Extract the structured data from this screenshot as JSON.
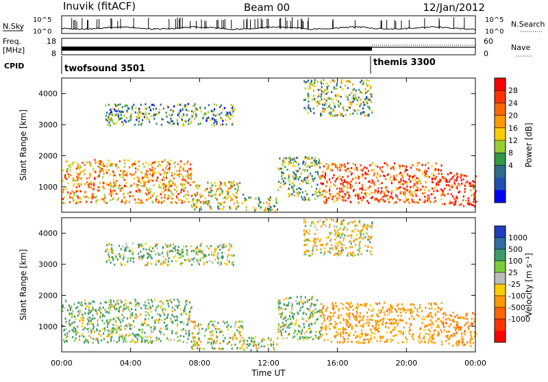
{
  "header": {
    "station": "Inuvik (fitACF)",
    "beam": "Beam 00",
    "date": "12/Jan/2012"
  },
  "noise_panel": {
    "left_label": "N.Sky",
    "right_label": "N.Search",
    "tick_top": "10^5",
    "tick_bottom": "10^0"
  },
  "freq_panel": {
    "left_label_1": "Freq.",
    "left_label_2": "[MHz]",
    "left_ticks": [
      "18",
      "8"
    ],
    "right_ticks": [
      "60",
      "0"
    ],
    "right_label": "Nave"
  },
  "cpid_panel": {
    "label": "CPID",
    "programs": [
      {
        "name": "twofsound 3501",
        "start_hour": 0
      },
      {
        "name": "themis 3300",
        "start_hour": 18
      }
    ]
  },
  "axes": {
    "ylabel": "Slant Range [km]",
    "xlabel": "Time UT",
    "y_ticks": [
      "1000",
      "2000",
      "3000",
      "4000"
    ],
    "x_ticks": [
      "00:00",
      "04:00",
      "08:00",
      "12:00",
      "16:00",
      "20:00",
      "00:00"
    ]
  },
  "power_colorbar": {
    "label": "Power [dB]",
    "ticks": [
      "28",
      "24",
      "20",
      "16",
      "12",
      "8",
      "4"
    ],
    "colors": [
      "#ff0000",
      "#ff3300",
      "#ff6600",
      "#ff9900",
      "#ffcc00",
      "#99cc33",
      "#339944",
      "#2d6e8a",
      "#1f4fb0",
      "#0000ff"
    ]
  },
  "velocity_colorbar": {
    "label": "Velocity [m s⁻¹]",
    "ticks": [
      "1000",
      "500",
      "100",
      "25",
      "-25",
      "-100",
      "-500",
      "-1000"
    ],
    "colors": [
      "#1f3fc0",
      "#3070a0",
      "#3f9a6a",
      "#7acc3a",
      "#bbbbbb",
      "#ffcc00",
      "#ff9900",
      "#ff6600",
      "#ff3300",
      "#ff0000"
    ]
  },
  "chart_data": {
    "type": "heatmap",
    "x_range_hours": [
      0,
      24
    ],
    "y_range_km": [
      180,
      4500
    ],
    "panels": [
      {
        "name": "Power [dB]",
        "echo_regions": [
          {
            "t0": 0,
            "t1": 7.5,
            "r0": 500,
            "r1": 1900,
            "value": 22
          },
          {
            "t0": 7.5,
            "t1": 10.5,
            "r0": 300,
            "r1": 1200,
            "value": 18
          },
          {
            "t0": 10.5,
            "t1": 12.5,
            "r0": 250,
            "r1": 700,
            "value": 14
          },
          {
            "t0": 12.5,
            "t1": 15,
            "r0": 600,
            "r1": 2000,
            "value": 14
          },
          {
            "t0": 15,
            "t1": 22,
            "r0": 500,
            "r1": 1800,
            "value": 26
          },
          {
            "t0": 22,
            "t1": 24,
            "r0": 400,
            "r1": 1500,
            "value": 28
          },
          {
            "t0": 2.5,
            "t1": 10,
            "r0": 3000,
            "r1": 3700,
            "value": 12
          },
          {
            "t0": 14,
            "t1": 18,
            "r0": 3300,
            "r1": 4500,
            "value": 14
          }
        ]
      },
      {
        "name": "Velocity [m s-1]",
        "echo_regions": [
          {
            "t0": 0,
            "t1": 7.5,
            "r0": 500,
            "r1": 1900,
            "value": 100
          },
          {
            "t0": 7.5,
            "t1": 10.5,
            "r0": 300,
            "r1": 1200,
            "value": 0
          },
          {
            "t0": 10.5,
            "t1": 12.5,
            "r0": 250,
            "r1": 700,
            "value": 50
          },
          {
            "t0": 12.5,
            "t1": 15,
            "r0": 600,
            "r1": 2000,
            "value": 100
          },
          {
            "t0": 15,
            "t1": 22,
            "r0": 500,
            "r1": 1800,
            "value": -300
          },
          {
            "t0": 22,
            "t1": 24,
            "r0": 400,
            "r1": 1500,
            "value": -400
          },
          {
            "t0": 2.5,
            "t1": 10,
            "r0": 3000,
            "r1": 3700,
            "value": 100
          },
          {
            "t0": 14,
            "t1": 18,
            "r0": 3300,
            "r1": 4500,
            "value": -100
          }
        ]
      }
    ]
  }
}
